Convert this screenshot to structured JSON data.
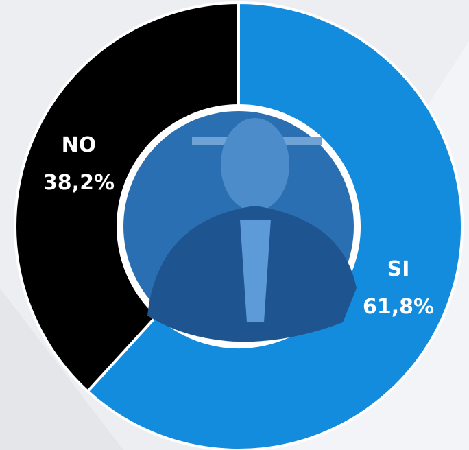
{
  "chart_data": {
    "type": "donut",
    "categories": [
      "SI",
      "NO"
    ],
    "values": [
      61.8,
      38.2
    ],
    "value_labels": [
      "61,8%",
      "38,2%"
    ],
    "colors": [
      "#138cde",
      "#000000"
    ]
  }
}
